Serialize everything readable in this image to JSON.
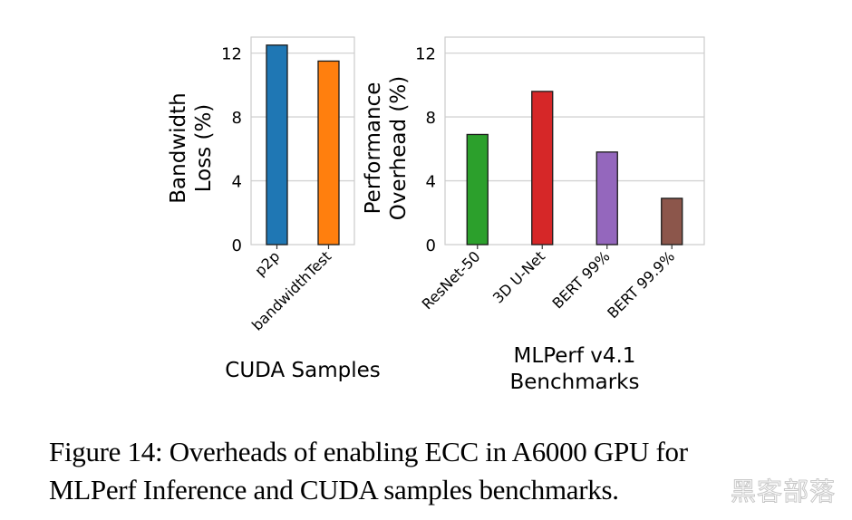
{
  "chart_data": [
    {
      "type": "bar",
      "panel": "left",
      "categories": [
        "p2p",
        "bandwidthTest"
      ],
      "values": [
        12.5,
        11.5
      ],
      "colors": [
        "#1f77b4",
        "#ff7f0e"
      ],
      "xlabel": "CUDA Samples",
      "ylabel_lines": [
        "Bandwidth",
        "Loss (%)"
      ],
      "ylim": [
        0,
        13
      ],
      "yticks": [
        0,
        4,
        8,
        12
      ],
      "grid": true,
      "tick_rotation": 45
    },
    {
      "type": "bar",
      "panel": "right",
      "categories": [
        "ResNet-50",
        "3D U-Net",
        "BERT 99%",
        "BERT 99.9%"
      ],
      "values": [
        6.9,
        9.6,
        5.8,
        2.9
      ],
      "colors": [
        "#2ca02c",
        "#d62728",
        "#9467bd",
        "#8c564b"
      ],
      "xlabel_lines": [
        "MLPerf v4.1",
        "Benchmarks"
      ],
      "ylabel_lines": [
        "Performance",
        "Overhead (%)"
      ],
      "ylim": [
        0,
        13
      ],
      "yticks": [
        0,
        4,
        8,
        12
      ],
      "grid": true,
      "tick_rotation": 45
    }
  ],
  "caption": {
    "line1": "Figure 14:  Overheads of enabling ECC in A6000 GPU for",
    "line2": "MLPerf Inference and CUDA samples benchmarks."
  },
  "watermark": "黑客部落"
}
